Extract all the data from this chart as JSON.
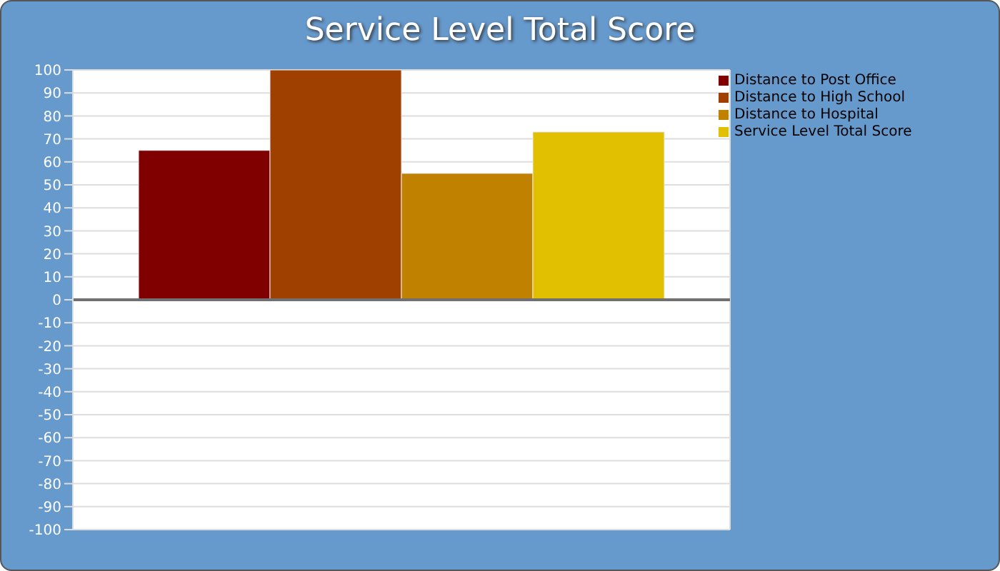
{
  "chart_data": {
    "type": "bar",
    "title": "Service Level Total Score",
    "categories": [
      null
    ],
    "series": [
      {
        "name": "Distance to Post Office",
        "color": "#800000",
        "values": [
          65
        ]
      },
      {
        "name": "Distance to High School",
        "color": "#a04000",
        "values": [
          100
        ]
      },
      {
        "name": "Distance to Hospital",
        "color": "#c08000",
        "values": [
          55
        ]
      },
      {
        "name": "Service Level Total Score",
        "color": "#e0c000",
        "values": [
          73
        ]
      }
    ],
    "ylim": [
      -100,
      100
    ],
    "yticks": [
      -100,
      -90,
      -80,
      -70,
      -60,
      -50,
      -40,
      -30,
      -20,
      -10,
      0,
      10,
      20,
      30,
      40,
      50,
      60,
      70,
      80,
      90,
      100
    ],
    "ref_lines": [
      {
        "axis": "y",
        "value": 0,
        "color": "#707070"
      }
    ],
    "grid": true,
    "legend": "top right",
    "tick_labels": "y"
  }
}
